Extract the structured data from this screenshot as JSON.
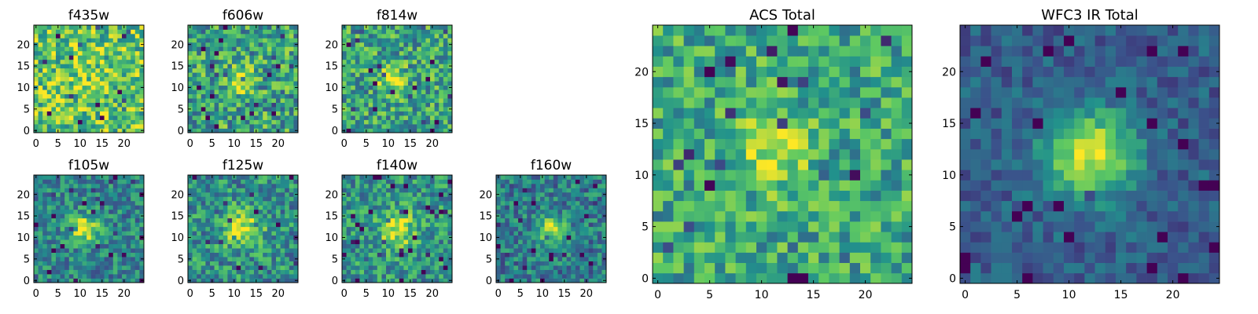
{
  "chart_data": [
    {
      "type": "heatmap",
      "title": "f435w",
      "size": 25,
      "xticks": [
        0,
        5,
        10,
        15,
        20
      ],
      "yticks": [
        0,
        5,
        10,
        15,
        20
      ],
      "xlim": [
        0,
        24
      ],
      "ylim": [
        0,
        24
      ],
      "seed": 11,
      "source": {
        "x": 12,
        "y": 12,
        "amp": 0.08,
        "sigma": 3.0
      },
      "base": 0.72,
      "noise": 0.3
    },
    {
      "type": "heatmap",
      "title": "f606w",
      "size": 25,
      "xticks": [
        0,
        5,
        10,
        15,
        20
      ],
      "yticks": [
        0,
        5,
        10,
        15,
        20
      ],
      "xlim": [
        0,
        24
      ],
      "ylim": [
        0,
        24
      ],
      "seed": 23,
      "source": {
        "x": 11,
        "y": 12,
        "amp": 0.35,
        "sigma": 2.2
      },
      "base": 0.58,
      "noise": 0.3
    },
    {
      "type": "heatmap",
      "title": "f814w",
      "size": 25,
      "xticks": [
        0,
        5,
        10,
        15,
        20
      ],
      "yticks": [
        0,
        5,
        10,
        15,
        20
      ],
      "xlim": [
        0,
        24
      ],
      "ylim": [
        0,
        24
      ],
      "seed": 37,
      "source": {
        "x": 11,
        "y": 12,
        "amp": 0.45,
        "sigma": 2.0
      },
      "base": 0.58,
      "noise": 0.28
    },
    {
      "type": "heatmap",
      "title": "f105w",
      "size": 25,
      "xticks": [
        0,
        5,
        10,
        15,
        20
      ],
      "yticks": [
        0,
        5,
        10,
        15,
        20
      ],
      "xlim": [
        0,
        24
      ],
      "ylim": [
        0,
        24
      ],
      "seed": 41,
      "source": {
        "x": 11,
        "y": 12,
        "amp": 0.5,
        "sigma": 2.3
      },
      "base": 0.45,
      "noise": 0.22
    },
    {
      "type": "heatmap",
      "title": "f125w",
      "size": 25,
      "xticks": [
        0,
        5,
        10,
        15,
        20
      ],
      "yticks": [
        0,
        5,
        10,
        15,
        20
      ],
      "xlim": [
        0,
        24
      ],
      "ylim": [
        0,
        24
      ],
      "seed": 53,
      "source": {
        "x": 12,
        "y": 12,
        "amp": 0.45,
        "sigma": 3.0
      },
      "base": 0.5,
      "noise": 0.25
    },
    {
      "type": "heatmap",
      "title": "f140w",
      "size": 25,
      "xticks": [
        0,
        5,
        10,
        15,
        20
      ],
      "yticks": [
        0,
        5,
        10,
        15,
        20
      ],
      "xlim": [
        0,
        24
      ],
      "ylim": [
        0,
        24
      ],
      "seed": 67,
      "source": {
        "x": 12,
        "y": 12,
        "amp": 0.45,
        "sigma": 2.8
      },
      "base": 0.52,
      "noise": 0.24
    },
    {
      "type": "heatmap",
      "title": "f160w",
      "size": 25,
      "xticks": [
        0,
        5,
        10,
        15,
        20
      ],
      "yticks": [
        0,
        5,
        10,
        15,
        20
      ],
      "xlim": [
        0,
        24
      ],
      "ylim": [
        0,
        24
      ],
      "seed": 79,
      "source": {
        "x": 12,
        "y": 12,
        "amp": 0.5,
        "sigma": 2.2
      },
      "base": 0.42,
      "noise": 0.22
    },
    {
      "type": "heatmap",
      "title": "ACS Total",
      "size": 25,
      "xticks": [
        0,
        5,
        10,
        15,
        20
      ],
      "yticks": [
        0,
        5,
        10,
        15,
        20
      ],
      "xlim": [
        0,
        24
      ],
      "ylim": [
        0,
        24
      ],
      "seed": 97,
      "source": {
        "x": 11,
        "y": 12,
        "amp": 0.35,
        "sigma": 2.3
      },
      "base": 0.6,
      "noise": 0.24
    },
    {
      "type": "heatmap",
      "title": "WFC3 IR Total",
      "size": 25,
      "xticks": [
        0,
        5,
        10,
        15,
        20
      ],
      "yticks": [
        0,
        5,
        10,
        15,
        20
      ],
      "xlim": [
        0,
        24
      ],
      "ylim": [
        0,
        24
      ],
      "seed": 101,
      "source": {
        "x": 12,
        "y": 12,
        "amp": 0.65,
        "sigma": 3.0
      },
      "base": 0.3,
      "noise": 0.13
    }
  ],
  "colormap": {
    "name": "viridis",
    "stops": [
      "#440154",
      "#3b528b",
      "#21918c",
      "#5ec962",
      "#fde725"
    ]
  }
}
